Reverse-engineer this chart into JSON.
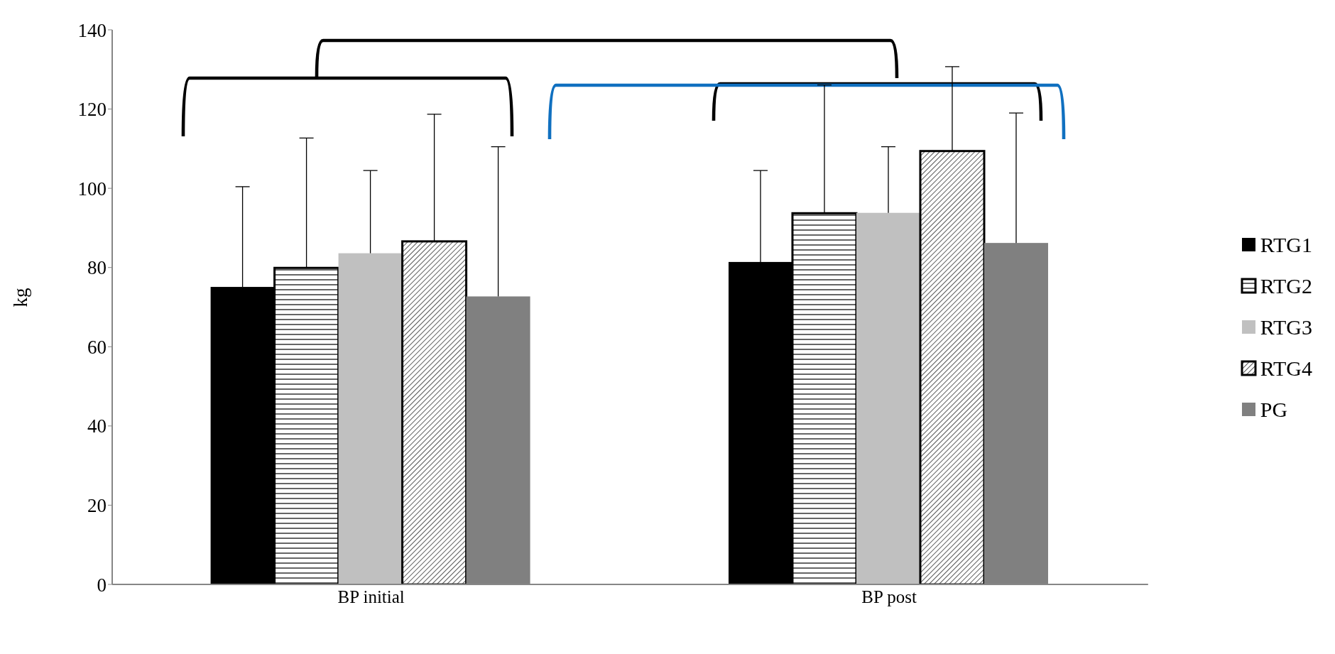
{
  "chart_data": {
    "type": "bar",
    "ylabel": "kg",
    "categories": [
      "BP initial",
      "BP post"
    ],
    "series": [
      {
        "name": "RTG1",
        "color": "#000000",
        "values": [
          75.1,
          81.4
        ],
        "errors": [
          [
            75.1,
            100.4
          ],
          [
            81.4,
            104.5
          ]
        ]
      },
      {
        "name": "RTG2",
        "color": "#000000",
        "values": [
          79.9,
          93.7
        ],
        "errors": [
          [
            79.9,
            112.7
          ],
          [
            93.7,
            126.1
          ]
        ]
      },
      {
        "name": "RTG3",
        "color": "#c0c0c0",
        "values": [
          83.6,
          93.8
        ],
        "errors": [
          [
            83.6,
            104.5
          ],
          [
            93.8,
            110.5
          ]
        ]
      },
      {
        "name": "RTG4",
        "color": "#000000",
        "values": [
          86.6,
          109.4
        ],
        "errors": [
          [
            86.6,
            118.7
          ],
          [
            109.4,
            130.7
          ]
        ]
      },
      {
        "name": "PG",
        "color": "#808080",
        "values": [
          72.7,
          86.2
        ],
        "errors": [
          [
            72.7,
            110.5
          ],
          [
            86.2,
            119.0
          ]
        ]
      }
    ],
    "ylim": [
      0,
      140
    ],
    "yticks": [
      0,
      20,
      40,
      60,
      80,
      100,
      120,
      140
    ],
    "grid": false,
    "legend": "right"
  }
}
